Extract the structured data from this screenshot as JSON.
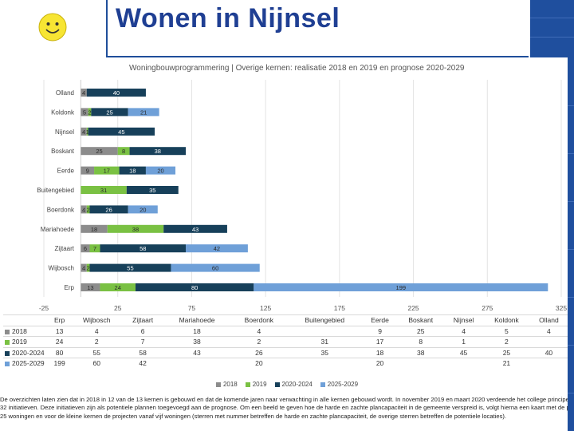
{
  "header": {
    "title": "Wonen in Nijnsel"
  },
  "chart_data": {
    "type": "bar",
    "stacked": true,
    "orientation": "horizontal",
    "title": "Woningbouwprogrammering | Overige kernen: realisatie 2018 en 2019 en prognose 2020-2029",
    "categories": [
      "Olland",
      "Koldonk",
      "Nijnsel",
      "Boskant",
      "Eerde",
      "Buitengebied",
      "Boerdonk",
      "Mariahoede",
      "Zijtaart",
      "Wijbosch",
      "Erp"
    ],
    "series": [
      {
        "name": "2018",
        "color": "#8c8c8c",
        "values": [
          4,
          5,
          4,
          25,
          9,
          null,
          4,
          18,
          6,
          4,
          13
        ]
      },
      {
        "name": "2019",
        "color": "#7ac143",
        "values": [
          null,
          2,
          1,
          8,
          17,
          31,
          2,
          38,
          7,
          2,
          24
        ]
      },
      {
        "name": "2020-2024",
        "color": "#17405a",
        "values": [
          40,
          25,
          45,
          38,
          18,
          35,
          26,
          43,
          58,
          55,
          80
        ]
      },
      {
        "name": "2025-2029",
        "color": "#6fa0d8",
        "values": [
          null,
          21,
          null,
          null,
          20,
          null,
          20,
          null,
          42,
          60,
          199
        ]
      }
    ],
    "xlim": [
      -25,
      325
    ],
    "xticks": [
      "-25",
      "25",
      "75",
      "125",
      "175",
      "225",
      "275",
      "325"
    ],
    "table": {
      "columns": [
        "Erp",
        "Wijbosch",
        "Zijtaart",
        "Mariahoede",
        "Boerdonk",
        "Buitengebied",
        "Eerde",
        "Boskant",
        "Nijnsel",
        "Koldonk",
        "Olland"
      ],
      "rows": [
        {
          "label": "2018",
          "color": "#8c8c8c",
          "cells": [
            "13",
            "4",
            "6",
            "18",
            "4",
            "",
            "9",
            "25",
            "4",
            "5",
            "4"
          ]
        },
        {
          "label": "2019",
          "color": "#7ac143",
          "cells": [
            "24",
            "2",
            "7",
            "38",
            "2",
            "31",
            "17",
            "8",
            "1",
            "2",
            ""
          ]
        },
        {
          "label": "2020-2024",
          "color": "#17405a",
          "cells": [
            "80",
            "55",
            "58",
            "43",
            "26",
            "35",
            "18",
            "38",
            "45",
            "25",
            "40"
          ]
        },
        {
          "label": "2025-2029",
          "color": "#6fa0d8",
          "cells": [
            "199",
            "60",
            "42",
            "",
            "20",
            "",
            "20",
            "",
            "",
            "21",
            ""
          ]
        }
      ]
    },
    "legend": [
      "2018",
      "2019",
      "2020-2024",
      "2025-2029"
    ]
  },
  "footer": {
    "lines": [
      "De overzichten laten zien dat in 2018 in 12 van de 13 kernen is gebouwd en dat de komende jaren naar verwachting in alle kernen gebouwd wordt. In november 2019 en maart 2020 verdeende het college principeamedewerking aan",
      "32 initiatieven. Deze initiatieven zijn als potentiele plannen toegevoegd aan de prognose. Om een beeld te geven hoe de harde en zachte plancapaciteit in de gemeente verspreid is, volgt hierna een kaart met de projecten vanaf",
      "25 woningen en voor de kleine kernen de projecten vanaf vijf woningen (sterren met nummer betreffen de harde en zachte plancapaciteit, de overige sterren betreffen de potentiele locaties)."
    ]
  }
}
